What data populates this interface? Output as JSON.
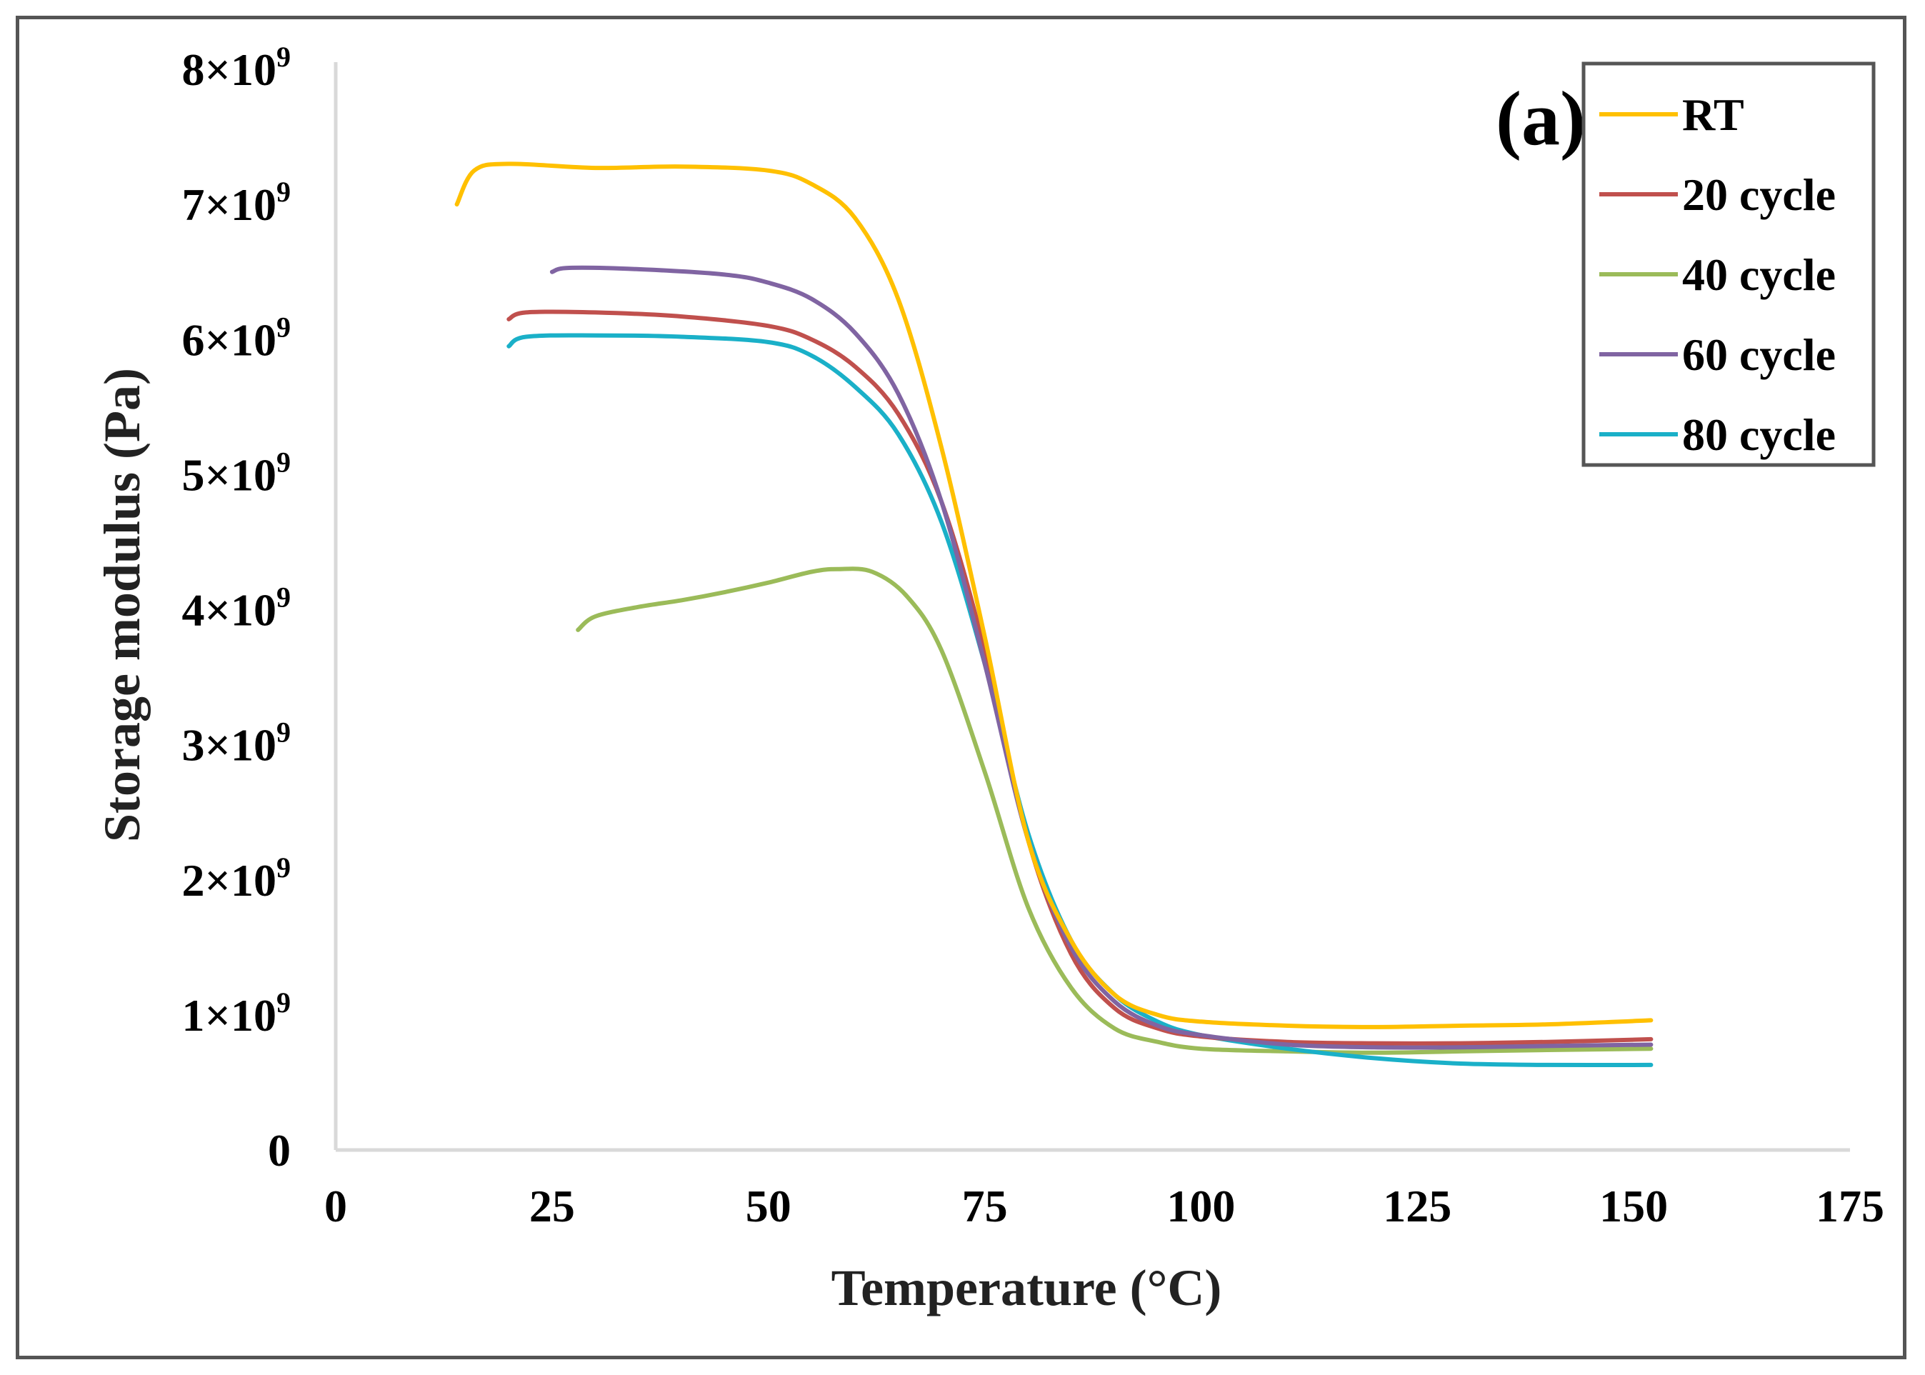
{
  "chart_data": {
    "type": "line",
    "panel_label": "(a)",
    "title": "",
    "xlabel": "Temperature (°C)",
    "ylabel": "Storage modulus (Pa)",
    "xlim": [
      0,
      175
    ],
    "ylim": [
      0,
      8000000000
    ],
    "xticks": [
      "0",
      "25",
      "50",
      "75",
      "100",
      "125",
      "150",
      "175"
    ],
    "yticks": [
      {
        "mantissa": "0",
        "exp": ""
      },
      {
        "mantissa": "1×10",
        "exp": "9"
      },
      {
        "mantissa": "2×10",
        "exp": "9"
      },
      {
        "mantissa": "3×10",
        "exp": "9"
      },
      {
        "mantissa": "4×10",
        "exp": "9"
      },
      {
        "mantissa": "5×10",
        "exp": "9"
      },
      {
        "mantissa": "6×10",
        "exp": "9"
      },
      {
        "mantissa": "7×10",
        "exp": "9"
      },
      {
        "mantissa": "8×10",
        "exp": "9"
      }
    ],
    "grid": false,
    "legend_position": "top-right",
    "series": [
      {
        "name": "RT",
        "color": "#FFC000",
        "x": [
          14,
          16,
          20,
          30,
          40,
          50,
          55,
          60,
          65,
          70,
          75,
          80,
          85,
          90,
          95,
          100,
          110,
          120,
          130,
          140,
          152
        ],
        "y": [
          7000000000.0,
          7250000000.0,
          7300000000.0,
          7270000000.0,
          7280000000.0,
          7250000000.0,
          7150000000.0,
          6900000000.0,
          6300000000.0,
          5200000000.0,
          3800000000.0,
          2300000000.0,
          1550000000.0,
          1150000000.0,
          1000000000.0,
          950000000.0,
          920000000.0,
          910000000.0,
          920000000.0,
          930000000.0,
          960000000.0
        ]
      },
      {
        "name": "20 cycle",
        "color": "#C0504D",
        "x": [
          20,
          22,
          30,
          40,
          50,
          55,
          60,
          65,
          70,
          75,
          80,
          85,
          90,
          95,
          100,
          110,
          120,
          130,
          140,
          152
        ],
        "y": [
          6150000000.0,
          6200000000.0,
          6200000000.0,
          6170000000.0,
          6100000000.0,
          6000000000.0,
          5800000000.0,
          5450000000.0,
          4800000000.0,
          3700000000.0,
          2300000000.0,
          1450000000.0,
          1050000000.0,
          900000000.0,
          840000000.0,
          800000000.0,
          790000000.0,
          790000000.0,
          800000000.0,
          820000000.0
        ]
      },
      {
        "name": "40 cycle",
        "color": "#9BBB59",
        "x": [
          28,
          30,
          35,
          40,
          45,
          50,
          55,
          58,
          62,
          66,
          70,
          75,
          80,
          85,
          90,
          95,
          100,
          110,
          120,
          130,
          140,
          152
        ],
        "y": [
          3850000000.0,
          3950000000.0,
          4020000000.0,
          4070000000.0,
          4130000000.0,
          4200000000.0,
          4280000000.0,
          4300000000.0,
          4280000000.0,
          4100000000.0,
          3700000000.0,
          2800000000.0,
          1800000000.0,
          1200000000.0,
          900000000.0,
          800000000.0,
          750000000.0,
          730000000.0,
          720000000.0,
          730000000.0,
          740000000.0,
          750000000.0
        ]
      },
      {
        "name": "60 cycle",
        "color": "#8064A2",
        "x": [
          25,
          27,
          35,
          45,
          50,
          55,
          60,
          65,
          70,
          75,
          80,
          85,
          90,
          95,
          100,
          110,
          120,
          130,
          140,
          152
        ],
        "y": [
          6500000000.0,
          6530000000.0,
          6520000000.0,
          6480000000.0,
          6420000000.0,
          6300000000.0,
          6050000000.0,
          5600000000.0,
          4800000000.0,
          3600000000.0,
          2300000000.0,
          1500000000.0,
          1100000000.0,
          920000000.0,
          850000000.0,
          780000000.0,
          760000000.0,
          760000000.0,
          770000000.0,
          780000000.0
        ]
      },
      {
        "name": "80 cycle",
        "color": "#1AB0C8",
        "x": [
          20,
          22,
          30,
          40,
          50,
          55,
          60,
          65,
          70,
          75,
          80,
          85,
          90,
          95,
          100,
          110,
          120,
          130,
          140,
          152
        ],
        "y": [
          5950000000.0,
          6020000000.0,
          6030000000.0,
          6020000000.0,
          5980000000.0,
          5880000000.0,
          5650000000.0,
          5300000000.0,
          4650000000.0,
          3600000000.0,
          2350000000.0,
          1550000000.0,
          1150000000.0,
          950000000.0,
          850000000.0,
          750000000.0,
          680000000.0,
          640000000.0,
          630000000.0,
          630000000.0
        ]
      }
    ]
  }
}
